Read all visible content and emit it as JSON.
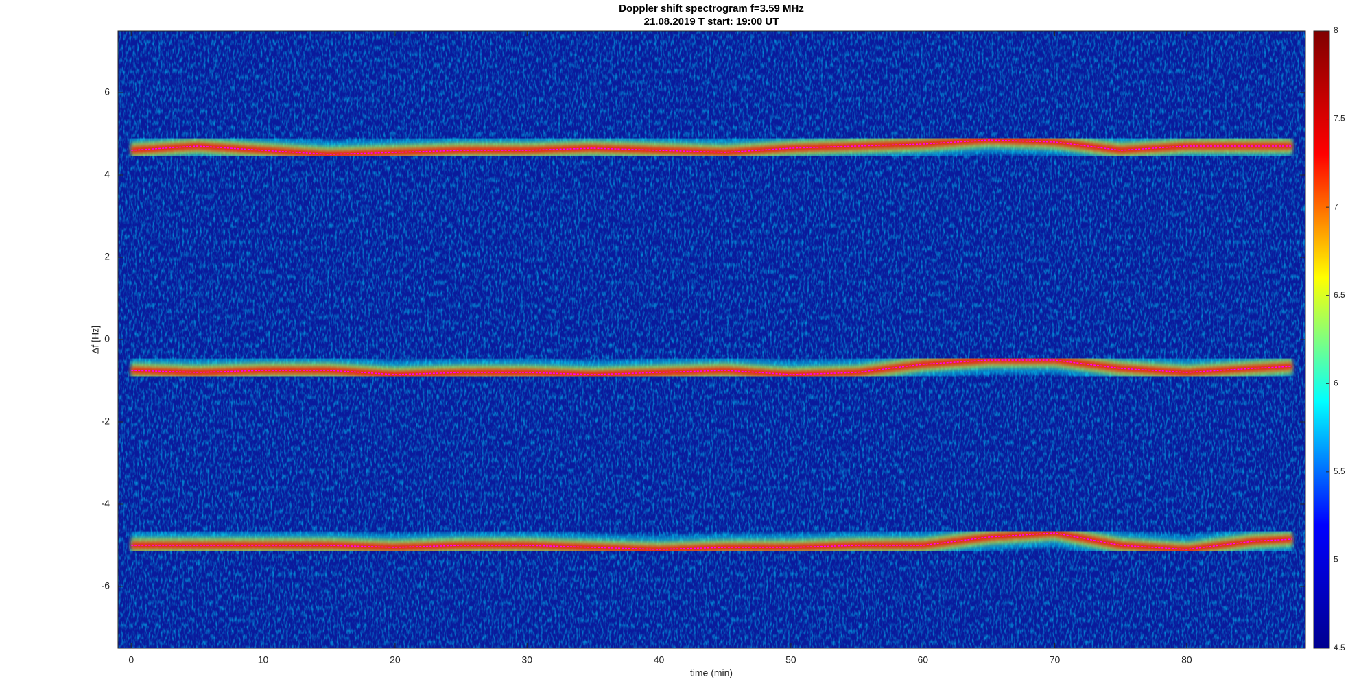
{
  "chart_data": {
    "type": "line",
    "title": "Doppler shift spectrogram f=3.59 MHz",
    "subtitle": "21.08.2019   T start: 19:00 UT",
    "x_label": "time (min)",
    "y_label": "Δf [Hz]",
    "x": [
      0,
      5,
      10,
      15,
      20,
      25,
      30,
      35,
      40,
      45,
      50,
      55,
      60,
      65,
      70,
      75,
      80,
      85,
      88
    ],
    "series": [
      {
        "color": "#ff00ff",
        "values": [
          4.6,
          4.7,
          4.6,
          4.5,
          4.55,
          4.6,
          4.6,
          4.65,
          4.6,
          4.55,
          4.65,
          4.7,
          4.75,
          4.85,
          4.8,
          4.6,
          4.7,
          4.7,
          4.7
        ]
      },
      {
        "color": "#ff00ff",
        "values": [
          -0.75,
          -0.8,
          -0.75,
          -0.75,
          -0.85,
          -0.8,
          -0.8,
          -0.85,
          -0.8,
          -0.75,
          -0.85,
          -0.8,
          -0.6,
          -0.5,
          -0.5,
          -0.7,
          -0.8,
          -0.7,
          -0.65
        ]
      },
      {
        "color": "#ff00ff",
        "values": [
          -5.0,
          -5.0,
          -5.0,
          -5.0,
          -5.05,
          -5.0,
          -5.0,
          -5.05,
          -5.1,
          -5.05,
          -5.05,
          -5.0,
          -5.0,
          -4.8,
          -4.7,
          -5.0,
          -5.1,
          -4.9,
          -4.85
        ]
      }
    ],
    "xlim": [
      -1,
      89
    ],
    "ylim": [
      -7.5,
      7.5
    ],
    "xticks": [
      0,
      10,
      20,
      30,
      40,
      50,
      60,
      70,
      80
    ],
    "yticks": [
      -6,
      -4,
      -2,
      0,
      2,
      4,
      6
    ],
    "background_color": "#0a1a9c",
    "colormap": [
      "#00008f",
      "#0000ff",
      "#00ffff",
      "#ffff00",
      "#ff0000",
      "#800000"
    ],
    "clim": [
      4.5,
      8
    ],
    "cticks": [
      4.5,
      5,
      5.5,
      6,
      6.5,
      7,
      7.5,
      8
    ]
  }
}
